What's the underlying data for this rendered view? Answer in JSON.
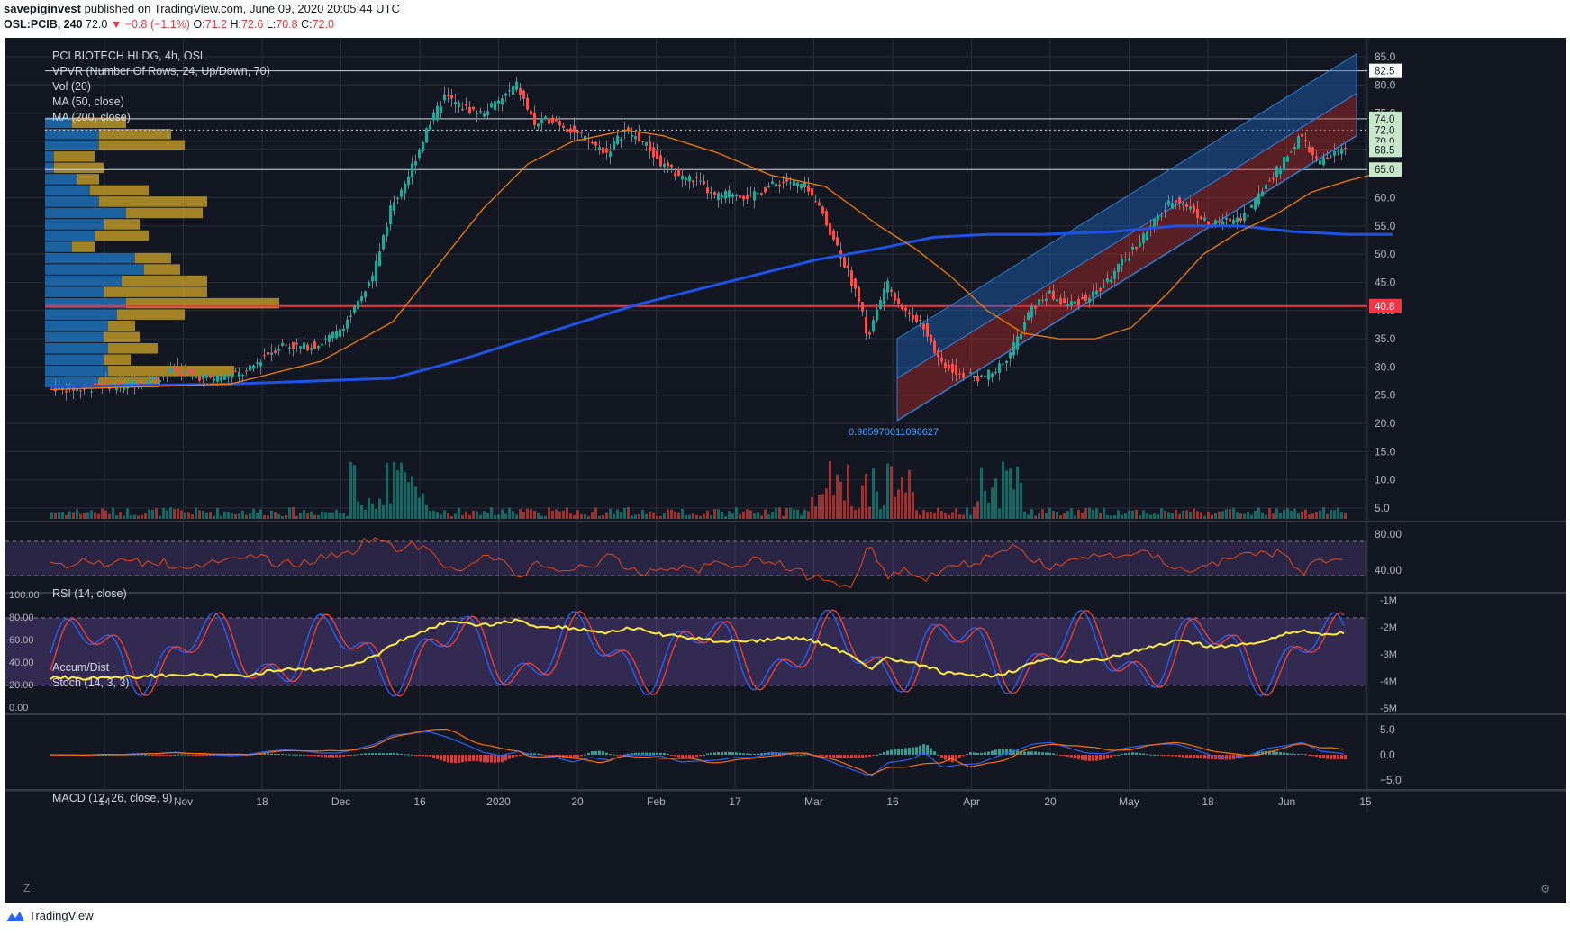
{
  "header": {
    "publisher": "savepiginvest",
    "published_text": "published on TradingView.com, June 09, 2020 20:05:44 UTC",
    "symbol": "OSL:PCIB, 240",
    "last": "72.0",
    "change": "−0.8 (−1.1%)",
    "open_label": "O:",
    "open": "71.2",
    "high_label": "H:",
    "high": "72.6",
    "low_label": "L:",
    "low": "70.8",
    "close_label": "C:",
    "close": "72.0"
  },
  "legend": {
    "title": "PCI BIOTECH HLDG, 4h, OSL",
    "vpvr": "VPVR (Number Of Rows, 24, Up/Down, 70)",
    "vol": "Vol (20)",
    "ma50": "MA (50, close)",
    "ma200": "MA (200, close)"
  },
  "panes": {
    "rsi": "RSI (14, close)",
    "accum": "Accum/Dist",
    "stoch": "Stoch (14, 3, 3)",
    "macd": "MACD (12, 26, close, 9)"
  },
  "footer": {
    "brand": "TradingView",
    "z": "Z"
  },
  "colors": {
    "bg": "#131722",
    "up": "#26a69a",
    "down": "#ef5350",
    "ma50": "#f57c00",
    "ma200": "#1e53e5",
    "rsi": "#e64a19",
    "stoch_k": "#2962ff",
    "stoch_d": "#f44336",
    "ad": "#ffeb3b",
    "channel_upper": "#1e63b8",
    "channel_lower": "#b22a2a",
    "vp_up": "#1f77c4",
    "vp_down": "#c9a227"
  },
  "chart_data": {
    "type": "candlestick",
    "title": "PCI BIOTECH HLDG, 4h, OSL",
    "x_ticks": [
      "14",
      "Nov",
      "18",
      "Dec",
      "16",
      "2020",
      "20",
      "Feb",
      "17",
      "Mar",
      "16",
      "Apr",
      "20",
      "May",
      "18",
      "Jun",
      "15"
    ],
    "price_ticks": [
      "85.0",
      "80.0",
      "75.0",
      "70.0",
      "65.0",
      "60.0",
      "55.0",
      "50.0",
      "45.0",
      "40.0",
      "35.0",
      "30.0",
      "25.0",
      "20.0",
      "15.0",
      "10.0",
      "5.0"
    ],
    "price_range": [
      2.5,
      87
    ],
    "price_labels": [
      {
        "value": 82.5,
        "text": "82.5",
        "color": "#ffffff"
      },
      {
        "value": 74.0,
        "text": "74.0",
        "color": "#c8e6c9"
      },
      {
        "value": 72.0,
        "text": "72.0",
        "color": "#c8e6c9"
      },
      {
        "value": 70.0,
        "text": "70.0",
        "color": "#c8e6c9"
      },
      {
        "value": 68.5,
        "text": "68.5",
        "color": "#c8e6c9"
      },
      {
        "value": 65.0,
        "text": "65.0",
        "color": "#c8e6c9"
      },
      {
        "value": 40.8,
        "text": "40.8",
        "color": "#f23645"
      }
    ],
    "horizontal_lines": [
      82.5,
      74.0,
      72.0,
      68.5,
      65.0
    ],
    "red_line": 40.8,
    "fib_label": "0.965970011096627",
    "price_path": [
      [
        0,
        26.5
      ],
      [
        40,
        26
      ],
      [
        60,
        27
      ],
      [
        80,
        26.5
      ],
      [
        100,
        27.5
      ],
      [
        120,
        28
      ],
      [
        140,
        29.5
      ],
      [
        160,
        28.5
      ],
      [
        180,
        28
      ],
      [
        200,
        28.5
      ],
      [
        220,
        29
      ],
      [
        240,
        32
      ],
      [
        260,
        34
      ],
      [
        280,
        33.5
      ],
      [
        300,
        34
      ],
      [
        320,
        36
      ],
      [
        340,
        40
      ],
      [
        360,
        46
      ],
      [
        380,
        58
      ],
      [
        400,
        64
      ],
      [
        420,
        72
      ],
      [
        440,
        78
      ],
      [
        460,
        76
      ],
      [
        480,
        75
      ],
      [
        500,
        77
      ],
      [
        520,
        80
      ],
      [
        540,
        73
      ],
      [
        560,
        74
      ],
      [
        580,
        72
      ],
      [
        600,
        70
      ],
      [
        620,
        68
      ],
      [
        640,
        72
      ],
      [
        660,
        70
      ],
      [
        680,
        66
      ],
      [
        700,
        64
      ],
      [
        720,
        63
      ],
      [
        740,
        60
      ],
      [
        760,
        61
      ],
      [
        780,
        60
      ],
      [
        800,
        62
      ],
      [
        820,
        63
      ],
      [
        840,
        62
      ],
      [
        860,
        57
      ],
      [
        880,
        50
      ],
      [
        900,
        42
      ],
      [
        910,
        35
      ],
      [
        930,
        45
      ],
      [
        950,
        40
      ],
      [
        970,
        38
      ],
      [
        990,
        31
      ],
      [
        1010,
        29
      ],
      [
        1030,
        28
      ],
      [
        1050,
        29
      ],
      [
        1070,
        33
      ],
      [
        1090,
        40
      ],
      [
        1110,
        43
      ],
      [
        1130,
        41
      ],
      [
        1150,
        42
      ],
      [
        1170,
        44
      ],
      [
        1190,
        48
      ],
      [
        1210,
        52
      ],
      [
        1230,
        56
      ],
      [
        1250,
        60
      ],
      [
        1270,
        58
      ],
      [
        1290,
        55
      ],
      [
        1310,
        56
      ],
      [
        1330,
        57
      ],
      [
        1350,
        62
      ],
      [
        1370,
        66
      ],
      [
        1390,
        71
      ],
      [
        1410,
        66
      ],
      [
        1430,
        68
      ],
      [
        1450,
        70
      ],
      [
        1470,
        72
      ],
      [
        1490,
        72
      ]
    ],
    "ma50_path": [
      [
        0,
        26
      ],
      [
        100,
        26.5
      ],
      [
        200,
        27
      ],
      [
        300,
        31
      ],
      [
        380,
        38
      ],
      [
        430,
        48
      ],
      [
        480,
        58
      ],
      [
        530,
        66
      ],
      [
        580,
        70
      ],
      [
        640,
        72
      ],
      [
        680,
        71
      ],
      [
        740,
        68
      ],
      [
        800,
        64
      ],
      [
        860,
        62
      ],
      [
        920,
        55
      ],
      [
        960,
        51
      ],
      [
        1000,
        46
      ],
      [
        1040,
        40
      ],
      [
        1080,
        36
      ],
      [
        1120,
        35
      ],
      [
        1160,
        35
      ],
      [
        1200,
        37
      ],
      [
        1240,
        43
      ],
      [
        1280,
        50
      ],
      [
        1320,
        54
      ],
      [
        1360,
        57
      ],
      [
        1400,
        61
      ],
      [
        1440,
        63
      ],
      [
        1490,
        65
      ]
    ],
    "ma200_path": [
      [
        0,
        26.5
      ],
      [
        200,
        27
      ],
      [
        380,
        28
      ],
      [
        450,
        31
      ],
      [
        550,
        36
      ],
      [
        650,
        41
      ],
      [
        750,
        45
      ],
      [
        850,
        49
      ],
      [
        920,
        51
      ],
      [
        980,
        53
      ],
      [
        1040,
        53.5
      ],
      [
        1100,
        53.5
      ],
      [
        1180,
        54
      ],
      [
        1250,
        55
      ],
      [
        1320,
        55
      ],
      [
        1380,
        54
      ],
      [
        1440,
        53.5
      ],
      [
        1490,
        53.5
      ]
    ],
    "channel": {
      "x0": 990,
      "x1": 1520,
      "upper_start": 35,
      "mid_start": 28,
      "lower_start": 20.5,
      "upper_end": 85.5,
      "mid_end": 78.5,
      "lower_end": 71
    },
    "vpvr": [
      {
        "price": 26.3,
        "up": 60,
        "down": 66
      },
      {
        "price": 28.3,
        "up": 70,
        "down": 140
      },
      {
        "price": 30.3,
        "up": 65,
        "down": 30
      },
      {
        "price": 32.3,
        "up": 70,
        "down": 55
      },
      {
        "price": 34.3,
        "up": 65,
        "down": 40
      },
      {
        "price": 36.3,
        "up": 70,
        "down": 30
      },
      {
        "price": 38.3,
        "up": 80,
        "down": 75
      },
      {
        "price": 40.3,
        "up": 90,
        "down": 170
      },
      {
        "price": 42.3,
        "up": 65,
        "down": 115
      },
      {
        "price": 44.3,
        "up": 85,
        "down": 95
      },
      {
        "price": 46.3,
        "up": 110,
        "down": 40
      },
      {
        "price": 48.3,
        "up": 100,
        "down": 40
      },
      {
        "price": 50.3,
        "up": 30,
        "down": 25
      },
      {
        "price": 52.3,
        "up": 55,
        "down": 60
      },
      {
        "price": 54.3,
        "up": 65,
        "down": 40
      },
      {
        "price": 56.3,
        "up": 90,
        "down": 85
      },
      {
        "price": 58.3,
        "up": 60,
        "down": 120
      },
      {
        "price": 60.3,
        "up": 50,
        "down": 65
      },
      {
        "price": 62.3,
        "up": 35,
        "down": 25
      },
      {
        "price": 64.3,
        "up": 10,
        "down": 55
      },
      {
        "price": 66.3,
        "up": 10,
        "down": 45
      },
      {
        "price": 68.3,
        "up": 60,
        "down": 95
      },
      {
        "price": 70.3,
        "up": 60,
        "down": 80
      },
      {
        "price": 72.3,
        "up": 30,
        "down": 60
      }
    ],
    "rsi_ticks": [
      "80.00",
      "40.00"
    ],
    "stoch_ticks": [
      "100.00",
      "80.00",
      "60.00",
      "40.00",
      "20.00",
      "0.00"
    ],
    "ad_ticks": [
      "-1M",
      "-2M",
      "-3M",
      "-4M",
      "-5M"
    ],
    "macd_ticks": [
      "5.0",
      "0.0",
      "−5.0"
    ]
  }
}
